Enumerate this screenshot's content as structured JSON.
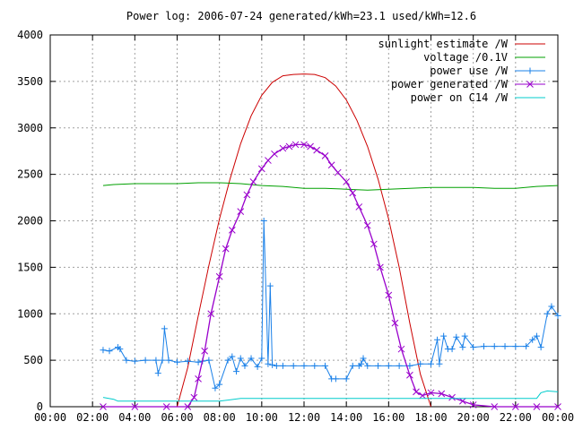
{
  "chart_data": {
    "type": "line",
    "title": "Power log: 2006-07-24 generated/kWh=23.1 used/kWh=12.6",
    "xlabel": "",
    "ylabel": "",
    "xlim": [
      0,
      24
    ],
    "ylim": [
      0,
      4000
    ],
    "grid": true,
    "legend_position": "top-right",
    "x_ticks": [
      "00:00",
      "02:00",
      "04:00",
      "06:00",
      "08:00",
      "10:00",
      "12:00",
      "14:00",
      "16:00",
      "18:00",
      "20:00",
      "22:00",
      "00:00"
    ],
    "y_ticks": [
      "0",
      "500",
      "1000",
      "1500",
      "2000",
      "2500",
      "3000",
      "3500",
      "4000"
    ],
    "series": [
      {
        "name": "sunlight estimate /W",
        "color": "#cc0000",
        "marker": "none",
        "x": [
          6.0,
          6.5,
          7.0,
          7.5,
          8.0,
          8.5,
          9.0,
          9.5,
          10.0,
          10.5,
          11.0,
          11.5,
          12.0,
          12.5,
          13.0,
          13.5,
          14.0,
          14.5,
          15.0,
          15.5,
          16.0,
          16.5,
          17.0,
          17.5,
          18.0
        ],
        "y": [
          0,
          420,
          980,
          1520,
          2020,
          2450,
          2830,
          3130,
          3350,
          3490,
          3560,
          3575,
          3580,
          3575,
          3540,
          3450,
          3300,
          3080,
          2800,
          2450,
          2020,
          1500,
          900,
          350,
          0
        ]
      },
      {
        "name": "voltage /0.1V",
        "color": "#00a000",
        "marker": "none",
        "x": [
          2.5,
          3.0,
          4.0,
          5.0,
          6.0,
          7.0,
          8.0,
          9.0,
          10.0,
          11.0,
          12.0,
          13.0,
          14.0,
          15.0,
          16.0,
          17.0,
          18.0,
          19.0,
          20.0,
          21.0,
          22.0,
          23.0,
          24.0
        ],
        "y": [
          2380,
          2390,
          2400,
          2400,
          2400,
          2410,
          2410,
          2400,
          2380,
          2370,
          2350,
          2350,
          2340,
          2330,
          2340,
          2350,
          2360,
          2360,
          2360,
          2350,
          2350,
          2370,
          2380
        ]
      },
      {
        "name": "power use /W",
        "color": "#1a80e8",
        "marker": "plus",
        "x": [
          2.5,
          2.8,
          3.2,
          3.3,
          3.6,
          4.0,
          4.5,
          5.0,
          5.1,
          5.3,
          5.4,
          5.6,
          6.0,
          6.5,
          7.0,
          7.2,
          7.5,
          7.8,
          8.0,
          8.4,
          8.6,
          8.8,
          9.0,
          9.2,
          9.5,
          9.8,
          10.0,
          10.1,
          10.3,
          10.4,
          10.5,
          10.7,
          11.0,
          11.5,
          12.0,
          12.5,
          13.0,
          13.3,
          13.5,
          14.0,
          14.3,
          14.6,
          14.7,
          14.8,
          15.0,
          15.5,
          16.0,
          16.5,
          17.0,
          17.5,
          18.0,
          18.3,
          18.4,
          18.6,
          18.8,
          19.0,
          19.2,
          19.5,
          19.6,
          20.0,
          20.5,
          21.0,
          21.5,
          22.0,
          22.5,
          22.8,
          23.0,
          23.2,
          23.5,
          23.7,
          24.0
        ],
        "y": [
          610,
          600,
          640,
          620,
          500,
          490,
          500,
          500,
          360,
          500,
          840,
          500,
          480,
          490,
          480,
          490,
          500,
          200,
          240,
          500,
          540,
          380,
          520,
          440,
          520,
          430,
          520,
          2000,
          460,
          1300,
          450,
          440,
          440,
          440,
          440,
          440,
          440,
          300,
          300,
          300,
          440,
          440,
          460,
          520,
          440,
          440,
          440,
          440,
          440,
          460,
          460,
          720,
          460,
          760,
          620,
          620,
          750,
          640,
          760,
          640,
          650,
          650,
          650,
          650,
          650,
          720,
          760,
          640,
          1000,
          1080,
          980
        ]
      },
      {
        "name": "power generated /W",
        "color": "#9900cc",
        "marker": "cross",
        "x": [
          2.5,
          4.0,
          5.5,
          6.5,
          6.8,
          7.0,
          7.3,
          7.6,
          8.0,
          8.3,
          8.6,
          9.0,
          9.3,
          9.6,
          10.0,
          10.3,
          10.6,
          11.0,
          11.3,
          11.6,
          12.0,
          12.3,
          12.6,
          13.0,
          13.3,
          13.6,
          14.0,
          14.3,
          14.6,
          15.0,
          15.3,
          15.6,
          16.0,
          16.3,
          16.6,
          17.0,
          17.3,
          17.6,
          18.0,
          18.5,
          19.0,
          19.5,
          20.0,
          21.0,
          22.0,
          23.0,
          24.0
        ],
        "y": [
          0,
          0,
          0,
          0,
          100,
          300,
          600,
          1000,
          1400,
          1700,
          1900,
          2100,
          2280,
          2420,
          2560,
          2650,
          2720,
          2780,
          2800,
          2820,
          2820,
          2800,
          2760,
          2700,
          2600,
          2520,
          2420,
          2300,
          2150,
          1950,
          1750,
          1500,
          1200,
          900,
          620,
          340,
          160,
          120,
          150,
          140,
          100,
          60,
          20,
          0,
          0,
          0,
          0
        ]
      },
      {
        "name": "power on C14 /W",
        "color": "#00cccc",
        "marker": "none",
        "x": [
          2.5,
          3.0,
          3.2,
          4.0,
          5.0,
          6.0,
          7.0,
          8.0,
          9.0,
          10.0,
          11.0,
          12.0,
          13.0,
          14.0,
          15.0,
          16.0,
          17.0,
          18.0,
          19.0,
          20.0,
          21.0,
          22.0,
          23.0,
          23.2,
          23.5,
          24.0
        ],
        "y": [
          100,
          80,
          60,
          60,
          60,
          60,
          60,
          60,
          90,
          90,
          90,
          90,
          90,
          90,
          90,
          90,
          90,
          90,
          90,
          90,
          90,
          90,
          90,
          150,
          170,
          160
        ]
      }
    ]
  }
}
